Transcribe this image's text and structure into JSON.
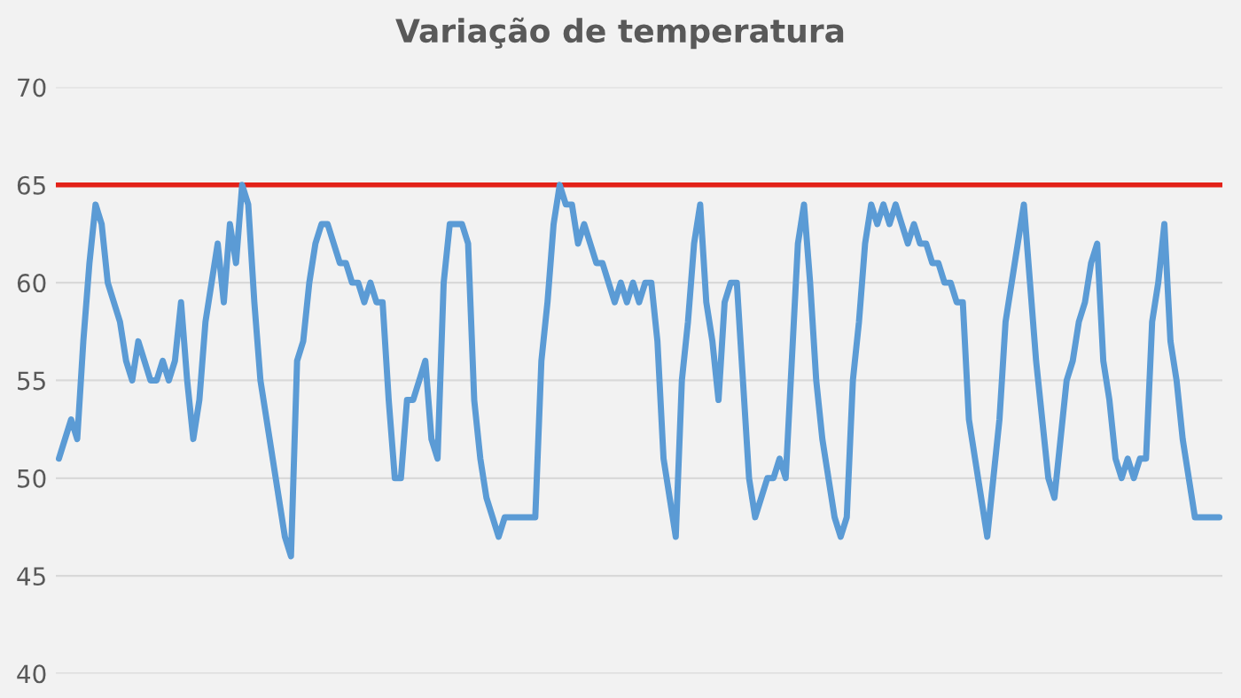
{
  "chart_data": {
    "type": "line",
    "title": "Variação de temperatura",
    "categories": [
      null,
      null,
      null,
      null,
      null,
      null,
      null,
      null,
      null,
      null,
      null,
      null,
      null,
      null,
      null,
      null,
      null,
      null,
      null,
      null,
      null,
      null,
      null,
      null,
      null,
      null,
      null,
      null,
      null,
      null,
      null,
      null,
      null,
      null,
      null,
      null,
      null,
      null,
      null,
      null,
      null,
      null,
      null,
      null,
      null,
      null,
      null,
      null,
      null,
      null,
      null,
      null,
      null,
      null,
      null,
      null,
      null,
      null,
      null,
      null,
      null,
      null,
      null,
      null,
      null,
      null,
      null,
      null,
      null,
      null,
      null,
      null,
      null,
      null,
      null,
      null,
      null,
      null,
      null,
      null,
      null,
      null,
      null,
      null,
      null,
      null,
      null,
      null,
      null,
      null,
      null,
      null,
      null,
      null,
      null,
      null,
      null,
      null,
      null,
      null,
      null,
      null,
      null,
      null,
      null,
      null,
      null,
      null,
      null,
      null,
      null,
      null,
      null,
      null,
      null,
      null,
      null,
      null,
      null,
      null,
      null,
      null,
      null,
      null,
      null,
      null,
      null,
      null,
      null,
      null,
      null,
      null,
      null,
      null,
      null,
      null,
      null,
      null,
      null,
      null,
      null,
      null,
      null,
      null,
      null,
      null,
      null,
      null,
      null,
      null,
      null,
      null,
      null,
      null,
      null,
      null,
      null,
      null,
      null,
      null,
      null,
      null,
      null,
      null,
      null,
      null,
      null,
      null,
      null,
      null,
      null,
      null,
      null,
      null,
      null,
      null,
      null,
      null,
      null,
      null,
      null,
      null,
      null,
      null,
      null,
      null,
      null,
      null,
      null,
      null,
      null
    ],
    "series": [
      {
        "color": "#5b9bd5",
        "values": [
          51,
          52,
          53,
          52,
          57,
          61,
          64,
          63,
          60,
          59,
          58,
          56,
          55,
          57,
          56,
          55,
          55,
          56,
          55,
          56,
          59,
          55,
          52,
          54,
          58,
          60,
          62,
          59,
          63,
          61,
          65,
          64,
          59,
          55,
          53,
          51,
          49,
          47,
          46,
          56,
          57,
          60,
          62,
          63,
          63,
          62,
          61,
          61,
          60,
          60,
          59,
          60,
          59,
          59,
          54,
          50,
          50,
          54,
          54,
          55,
          56,
          52,
          51,
          60,
          63,
          63,
          63,
          62,
          54,
          51,
          49,
          48,
          47,
          48,
          48,
          48,
          48,
          48,
          48,
          56,
          59,
          63,
          65,
          64,
          64,
          62,
          63,
          62,
          61,
          61,
          60,
          59,
          60,
          59,
          60,
          59,
          60,
          60,
          57,
          51,
          49,
          47,
          55,
          58,
          62,
          64,
          59,
          57,
          54,
          59,
          60,
          60,
          55,
          50,
          48,
          49,
          50,
          50,
          51,
          50,
          56,
          62,
          64,
          60,
          55,
          52,
          50,
          48,
          47,
          48,
          55,
          58,
          62,
          64,
          63,
          64,
          63,
          64,
          63,
          62,
          63,
          62,
          62,
          61,
          61,
          60,
          60,
          59,
          59,
          53,
          51,
          49,
          47,
          50,
          53,
          58,
          60,
          62,
          64,
          60,
          56,
          53,
          50,
          49,
          52,
          55,
          56,
          58,
          59,
          61,
          62,
          56,
          54,
          51,
          50,
          51,
          50,
          51,
          51,
          58,
          60,
          63,
          57,
          55,
          52,
          50,
          48,
          48,
          48,
          48,
          48
        ]
      }
    ],
    "ylim": [
      40,
      70
    ],
    "yticks": [
      40,
      45,
      50,
      55,
      60,
      65,
      70
    ],
    "grid": "y",
    "legend": false,
    "ref_lines": [
      {
        "axis": "y",
        "value": 65,
        "color": "#e32219",
        "line_style": "solid"
      }
    ]
  }
}
